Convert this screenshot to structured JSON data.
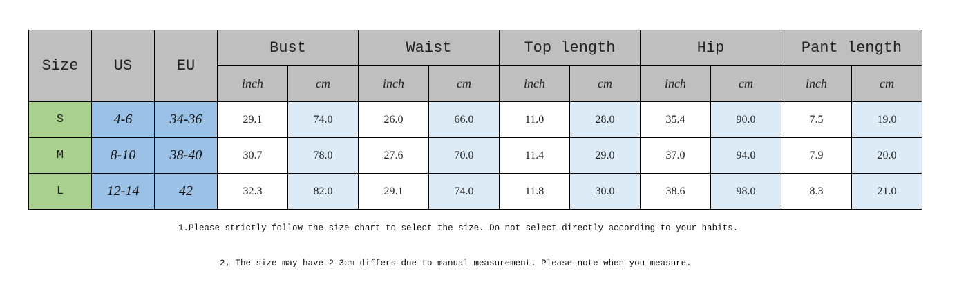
{
  "table": {
    "headers": {
      "size": "Size",
      "us": "US",
      "eu": "EU"
    },
    "groups": [
      "Bust",
      "Waist",
      "Top length",
      "Hip",
      "Pant length"
    ],
    "units": {
      "inch": "inch",
      "cm": "cm"
    },
    "rows": [
      {
        "size": "S",
        "us": "4-6",
        "eu": "34-36",
        "values": [
          "29.1",
          "74.0",
          "26.0",
          "66.0",
          "11.0",
          "28.0",
          "35.4",
          "90.0",
          "7.5",
          "19.0"
        ]
      },
      {
        "size": "M",
        "us": "8-10",
        "eu": "38-40",
        "values": [
          "30.7",
          "78.0",
          "27.6",
          "70.0",
          "11.4",
          "29.0",
          "37.0",
          "94.0",
          "7.9",
          "20.0"
        ]
      },
      {
        "size": "L",
        "us": "12-14",
        "eu": "42",
        "values": [
          "32.3",
          "82.0",
          "29.1",
          "74.0",
          "11.8",
          "30.0",
          "38.6",
          "98.0",
          "8.3",
          "21.0"
        ]
      }
    ],
    "colors": {
      "header": "#bfbfbf",
      "size": "#a9d08e",
      "us_eu": "#9bc2e6",
      "cm": "#ddebf7"
    }
  },
  "notes": [
    "1.Please strictly follow the size chart to select the size. Do not select directly according to your habits.",
    "2. The size may have 2-3cm differs due to manual measurement. Please note when you measure."
  ]
}
